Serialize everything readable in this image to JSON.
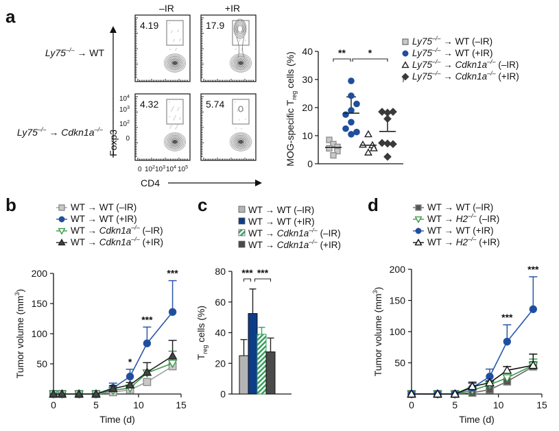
{
  "panels": {
    "a": {
      "letter": "a",
      "flow": {
        "col_labels": [
          "–IR",
          "+IR"
        ],
        "row_labels": [
          {
            "pre": "Ly75",
            "sup": "–/–",
            "arrow": " → ",
            "post": "WT",
            "post_italic": false,
            "post_sup": ""
          },
          {
            "pre": "Ly75",
            "sup": "–/–",
            "arrow": " → ",
            "post": "Cdkn1a",
            "post_italic": true,
            "post_sup": "–/–"
          }
        ],
        "percentages": [
          [
            "4.19",
            "17.9"
          ],
          [
            "4.32",
            "5.74"
          ]
        ],
        "y_axis_label": "Foxp3",
        "x_axis_label": "CD4",
        "y_ticks": [
          {
            "base": "10",
            "exp": "4"
          },
          {
            "base": "10",
            "exp": "3"
          },
          {
            "base": "10",
            "exp": "2"
          },
          {
            "base": "0",
            "exp": ""
          }
        ],
        "x_ticks": [
          {
            "base": "0",
            "exp": ""
          },
          {
            "base": "10",
            "exp": "2"
          },
          {
            "base": "10",
            "exp": "3"
          },
          {
            "base": "10",
            "exp": "4"
          },
          {
            "base": "10",
            "exp": "5"
          }
        ]
      },
      "legend": [
        {
          "marker": "square",
          "color": "#b0b0b0",
          "pre": "Ly75",
          "sup": "–/–",
          "mid": " → ",
          "post": "WT",
          "post_italic": false,
          "post_sup": "",
          "suffix": " (–IR)"
        },
        {
          "marker": "circle",
          "color": "#1f4e9c",
          "pre": "Ly75",
          "sup": "–/–",
          "mid": " → ",
          "post": "WT",
          "post_italic": false,
          "post_sup": "",
          "suffix": " (+IR)"
        },
        {
          "marker": "triangle-open",
          "color": "#222222",
          "pre": "Ly75",
          "sup": "–/–",
          "mid": " → ",
          "post": "Cdkn1a",
          "post_italic": true,
          "post_sup": "–/–",
          "suffix": " (–IR)"
        },
        {
          "marker": "diamond",
          "color": "#3a3a3a",
          "pre": "Ly75",
          "sup": "–/–",
          "mid": " → ",
          "post": "Cdkn1a",
          "post_italic": true,
          "post_sup": "–/–",
          "suffix": " (+IR)"
        }
      ]
    },
    "b": {
      "letter": "b"
    },
    "c": {
      "letter": "c"
    },
    "d": {
      "letter": "d"
    }
  },
  "chart_data": [
    {
      "id": "a-scatter",
      "type": "scatter",
      "title": "",
      "ylabel_main": "MOG-specific T",
      "ylabel_sub": "reg",
      "ylabel_tail": " cells (%)",
      "ylim": [
        0,
        40
      ],
      "yticks": [
        0,
        10,
        20,
        30,
        40
      ],
      "groups": [
        {
          "name": "Ly75–/– → WT (–IR)",
          "marker": "square",
          "fill": "#c8c8c8",
          "stroke": "#8a8a8a",
          "values": [
            8.5,
            7,
            6,
            5.5,
            4.5,
            3
          ],
          "mean": 5.8,
          "err": [
            5.8,
            5.8
          ]
        },
        {
          "name": "Ly75–/– → WT (+IR)",
          "marker": "circle",
          "fill": "#1f4e9c",
          "stroke": "#1f4e9c",
          "values": [
            29.5,
            24.2,
            21.3,
            19,
            17.5,
            14.8,
            12.5,
            11.3,
            10.5
          ],
          "mean": 18,
          "err": [
            18,
            23.8
          ]
        },
        {
          "name": "Ly75–/– → Cdkn1a–/– (–IR)",
          "marker": "triangle-open",
          "fill": "#ffffff",
          "stroke": "#222222",
          "values": [
            10.5,
            6.8,
            6.6,
            5.5,
            4
          ],
          "mean": 6.6,
          "err": [
            6.6,
            6.6
          ]
        },
        {
          "name": "Ly75–/– → Cdkn1a–/– (+IR)",
          "marker": "diamond",
          "fill": "#3a3a3a",
          "stroke": "#3a3a3a",
          "values": [
            18.5,
            18.5,
            18.2,
            16,
            7.4,
            7.2,
            7.0,
            2.5
          ],
          "mean": 11.5,
          "err": [
            11.5,
            18
          ]
        }
      ],
      "significance": [
        {
          "from": 0,
          "to": 1,
          "label": "**"
        },
        {
          "from": 1,
          "to": 3,
          "label": "*"
        }
      ]
    },
    {
      "id": "b-line",
      "type": "line",
      "xlabel": "Time (d)",
      "ylabel": "Tumor volume (mm",
      "ylabel_sup": "3",
      "ylabel_tail": ")",
      "xlim": [
        0,
        15
      ],
      "ylim": [
        0,
        200
      ],
      "xticks": [
        0,
        5,
        10,
        15
      ],
      "yticks": [
        50,
        100,
        150,
        200
      ],
      "x": [
        0,
        1,
        3,
        5,
        7,
        9,
        11,
        14
      ],
      "series": [
        {
          "name": "WT → WT (–IR)",
          "legend_pre": "WT → WT",
          "legend_italic": "",
          "legend_sup": "",
          "legend_suffix": " (–IR)",
          "marker": "square",
          "color": "#a0a0a0",
          "fill": "#c8c8c8",
          "values": [
            0,
            0,
            0,
            0,
            3,
            7,
            20,
            46
          ],
          "err": [
            0,
            0,
            0,
            0,
            3,
            3,
            3,
            5
          ]
        },
        {
          "name": "WT → WT (+IR)",
          "legend_pre": "WT → WT",
          "legend_italic": "",
          "legend_sup": "",
          "legend_suffix": " (+IR)",
          "marker": "circle",
          "color": "#2a56a8",
          "fill": "#1f4e9c",
          "values": [
            0,
            0,
            0,
            0,
            10,
            29,
            84,
            136
          ],
          "err": [
            0,
            0,
            0,
            0,
            8,
            12,
            27,
            52
          ]
        },
        {
          "name": "WT → Cdkn1a–/– (–IR)",
          "legend_pre": "WT → ",
          "legend_italic": "Cdkn1a",
          "legend_sup": "–/–",
          "legend_suffix": " (–IR)",
          "marker": "triangle-down-open",
          "color": "#3a9a4a",
          "fill": "#ffffff",
          "values": [
            0,
            0,
            0,
            0,
            6,
            10,
            35,
            51
          ],
          "err": [
            0,
            0,
            0,
            0,
            3,
            4,
            4,
            20
          ]
        },
        {
          "name": "WT → Cdkn1a–/– (+IR)",
          "legend_pre": "WT → ",
          "legend_italic": "Cdkn1a",
          "legend_sup": "–/–",
          "legend_suffix": " (+IR)",
          "marker": "triangle",
          "color": "#222222",
          "fill": "#444444",
          "values": [
            0,
            0,
            0,
            0,
            9,
            15,
            36,
            63
          ],
          "err": [
            0,
            0,
            0,
            0,
            5,
            4,
            16,
            26
          ]
        }
      ],
      "annotations": [
        {
          "x": 9,
          "label": "*"
        },
        {
          "x": 11,
          "label": "***"
        },
        {
          "x": 14,
          "label": "***"
        }
      ]
    },
    {
      "id": "c-bar",
      "type": "bar",
      "ylabel_main": "T",
      "ylabel_sub": "reg",
      "ylabel_tail": " cells (%)",
      "ylim": [
        0,
        80
      ],
      "yticks": [
        0,
        20,
        40,
        60,
        80
      ],
      "categories": [
        "WT → WT (–IR)",
        "WT → WT (+IR)",
        "WT → Cdkn1a–/– (–IR)",
        "WT → Cdkn1a–/– (+IR)"
      ],
      "legend": [
        {
          "pre": "WT → WT",
          "italic": "",
          "sup": "",
          "suffix": " (–IR)",
          "fill": "#b4b4b4",
          "pattern": ""
        },
        {
          "pre": "WT → WT",
          "italic": "",
          "sup": "",
          "suffix": " (+IR)",
          "fill": "#0d3d86",
          "pattern": ""
        },
        {
          "pre": "WT → ",
          "italic": "Cdkn1a",
          "sup": "–/–",
          "suffix": " (–IR)",
          "fill": "#3aa060",
          "pattern": "hatch"
        },
        {
          "pre": "WT → ",
          "italic": "Cdkn1a",
          "sup": "–/–",
          "suffix": " (+IR)",
          "fill": "#4a4a4a",
          "pattern": ""
        }
      ],
      "values": [
        25,
        52.5,
        39,
        27.5
      ],
      "err": [
        10.5,
        16,
        4.5,
        9
      ],
      "err_colors": [
        "#222222",
        "#222222",
        "#3aa060",
        "#222222"
      ],
      "significance": [
        {
          "from": 0,
          "to": 1,
          "label": "***"
        },
        {
          "from": 1,
          "to": 3,
          "label": "***"
        }
      ]
    },
    {
      "id": "d-line",
      "type": "line",
      "xlabel": "Time (d)",
      "ylabel": "Tumor volume (mm",
      "ylabel_sup": "3",
      "ylabel_tail": ")",
      "xlim": [
        0,
        15
      ],
      "ylim": [
        0,
        200
      ],
      "xticks": [
        0,
        5,
        10,
        15
      ],
      "yticks": [
        50,
        100,
        150,
        200
      ],
      "x": [
        0,
        3,
        5,
        7,
        9,
        11,
        14
      ],
      "series": [
        {
          "name": "WT → WT (–IR)",
          "legend_pre": "WT → WT",
          "legend_italic": "",
          "legend_sup": "",
          "legend_suffix": " (–IR)",
          "marker": "square",
          "color": "#666666",
          "fill": "#555555",
          "values": [
            0,
            0,
            0,
            2,
            7,
            20,
            44
          ],
          "err": [
            0,
            0,
            0,
            1,
            2,
            3,
            8
          ]
        },
        {
          "name": "WT → H2–/– (–IR)",
          "legend_pre": "WT → ",
          "legend_italic": "H2",
          "legend_sup": "–/–",
          "legend_suffix": " (–IR)",
          "marker": "triangle-down-open",
          "color": "#3a9a4a",
          "fill": "#ffffff",
          "values": [
            0,
            0,
            0,
            6,
            15,
            26,
            46
          ],
          "err": [
            0,
            0,
            0,
            3,
            3,
            4,
            10
          ]
        },
        {
          "name": "WT → WT (+IR)",
          "legend_pre": "WT → WT",
          "legend_italic": "",
          "legend_sup": "",
          "legend_suffix": " (+IR)",
          "marker": "circle",
          "color": "#2a56a8",
          "fill": "#1f4e9c",
          "values": [
            0,
            0,
            0,
            10,
            28,
            84,
            136
          ],
          "err": [
            0,
            0,
            0,
            7,
            12,
            27,
            52
          ]
        },
        {
          "name": "WT → H2–/– (+IR)",
          "legend_pre": "WT → ",
          "legend_italic": "H2",
          "legend_sup": "–/–",
          "legend_suffix": " (+IR)",
          "marker": "triangle-open",
          "color": "#111111",
          "fill": "#ffffff",
          "values": [
            0,
            0,
            0,
            12,
            18,
            38,
            46
          ],
          "err": [
            0,
            0,
            0,
            7,
            3,
            6,
            18
          ]
        }
      ],
      "annotations": [
        {
          "x": 11,
          "label": "***"
        },
        {
          "x": 14,
          "label": "***"
        }
      ]
    }
  ]
}
